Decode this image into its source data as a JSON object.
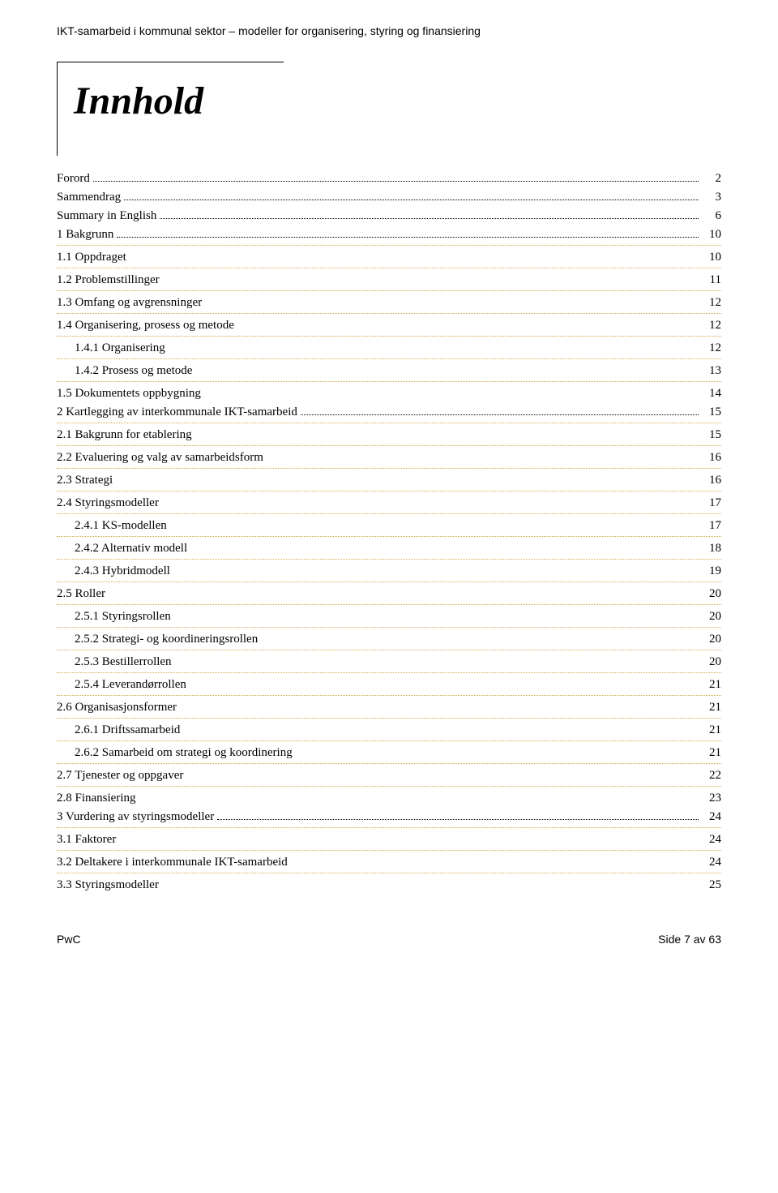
{
  "header": {
    "running_title": "IKT-samarbeid i kommunal sektor – modeller for organisering, styring og finansiering"
  },
  "title": "Innhold",
  "toc": [
    {
      "label": "Forord",
      "page": "2",
      "level": 0,
      "leader": true,
      "sep": false
    },
    {
      "label": "Sammendrag",
      "page": "3",
      "level": 0,
      "leader": true,
      "sep": false
    },
    {
      "label": "Summary in English",
      "page": "6",
      "level": 0,
      "leader": true,
      "sep": false
    },
    {
      "label": "1   Bakgrunn",
      "page": "10",
      "level": 0,
      "leader": true,
      "sep": true
    },
    {
      "label": "1.1   Oppdraget",
      "page": "10",
      "level": 1,
      "leader": false,
      "sep": true
    },
    {
      "label": "1.2   Problemstillinger",
      "page": "11",
      "level": 1,
      "leader": false,
      "sep": true
    },
    {
      "label": "1.3   Omfang og avgrensninger",
      "page": "12",
      "level": 1,
      "leader": false,
      "sep": true
    },
    {
      "label": "1.4   Organisering, prosess og metode",
      "page": "12",
      "level": 1,
      "leader": false,
      "sep": true
    },
    {
      "label": "1.4.1   Organisering",
      "page": "12",
      "level": 2,
      "leader": false,
      "sep": true
    },
    {
      "label": "1.4.2   Prosess og metode",
      "page": "13",
      "level": 2,
      "leader": false,
      "sep": true
    },
    {
      "label": "1.5   Dokumentets oppbygning",
      "page": "14",
      "level": 1,
      "leader": false,
      "sep": false
    },
    {
      "label": "2   Kartlegging av interkommunale IKT-samarbeid",
      "page": "15",
      "level": 0,
      "leader": true,
      "sep": true
    },
    {
      "label": "2.1   Bakgrunn for etablering",
      "page": "15",
      "level": 1,
      "leader": false,
      "sep": true
    },
    {
      "label": "2.2   Evaluering og valg av samarbeidsform",
      "page": "16",
      "level": 1,
      "leader": false,
      "sep": true
    },
    {
      "label": "2.3   Strategi",
      "page": "16",
      "level": 1,
      "leader": false,
      "sep": true
    },
    {
      "label": "2.4   Styringsmodeller",
      "page": "17",
      "level": 1,
      "leader": false,
      "sep": true
    },
    {
      "label": "2.4.1   KS-modellen",
      "page": "17",
      "level": 2,
      "leader": false,
      "sep": true
    },
    {
      "label": "2.4.2   Alternativ modell",
      "page": "18",
      "level": 2,
      "leader": false,
      "sep": true
    },
    {
      "label": "2.4.3   Hybridmodell",
      "page": "19",
      "level": 2,
      "leader": false,
      "sep": true
    },
    {
      "label": "2.5   Roller",
      "page": "20",
      "level": 1,
      "leader": false,
      "sep": true
    },
    {
      "label": "2.5.1   Styringsrollen",
      "page": "20",
      "level": 2,
      "leader": false,
      "sep": true
    },
    {
      "label": "2.5.2   Strategi- og koordineringsrollen",
      "page": "20",
      "level": 2,
      "leader": false,
      "sep": true
    },
    {
      "label": "2.5.3   Bestillerrollen",
      "page": "20",
      "level": 2,
      "leader": false,
      "sep": true
    },
    {
      "label": "2.5.4   Leverandørrollen",
      "page": "21",
      "level": 2,
      "leader": false,
      "sep": true
    },
    {
      "label": "2.6   Organisasjonsformer",
      "page": "21",
      "level": 1,
      "leader": false,
      "sep": true
    },
    {
      "label": "2.6.1   Driftssamarbeid",
      "page": "21",
      "level": 2,
      "leader": false,
      "sep": true
    },
    {
      "label": "2.6.2   Samarbeid om strategi og koordinering",
      "page": "21",
      "level": 2,
      "leader": false,
      "sep": true
    },
    {
      "label": "2.7   Tjenester og oppgaver",
      "page": "22",
      "level": 1,
      "leader": false,
      "sep": true
    },
    {
      "label": "2.8   Finansiering",
      "page": "23",
      "level": 1,
      "leader": false,
      "sep": false
    },
    {
      "label": "3   Vurdering av styringsmodeller",
      "page": "24",
      "level": 0,
      "leader": true,
      "sep": true
    },
    {
      "label": "3.1   Faktorer",
      "page": "24",
      "level": 1,
      "leader": false,
      "sep": true
    },
    {
      "label": "3.2   Deltakere i interkommunale IKT-samarbeid",
      "page": "24",
      "level": 1,
      "leader": false,
      "sep": true
    },
    {
      "label": "3.3   Styringsmodeller",
      "page": "25",
      "level": 1,
      "leader": false,
      "sep": false
    }
  ],
  "footer": {
    "left": "PwC",
    "right": "Side 7 av 63"
  },
  "style": {
    "body_font": "Georgia",
    "header_font": "Arial",
    "title_fontsize": 48,
    "body_fontsize": 15,
    "dotted_color": "#d4a84a",
    "text_color": "#000000",
    "background": "#ffffff"
  }
}
